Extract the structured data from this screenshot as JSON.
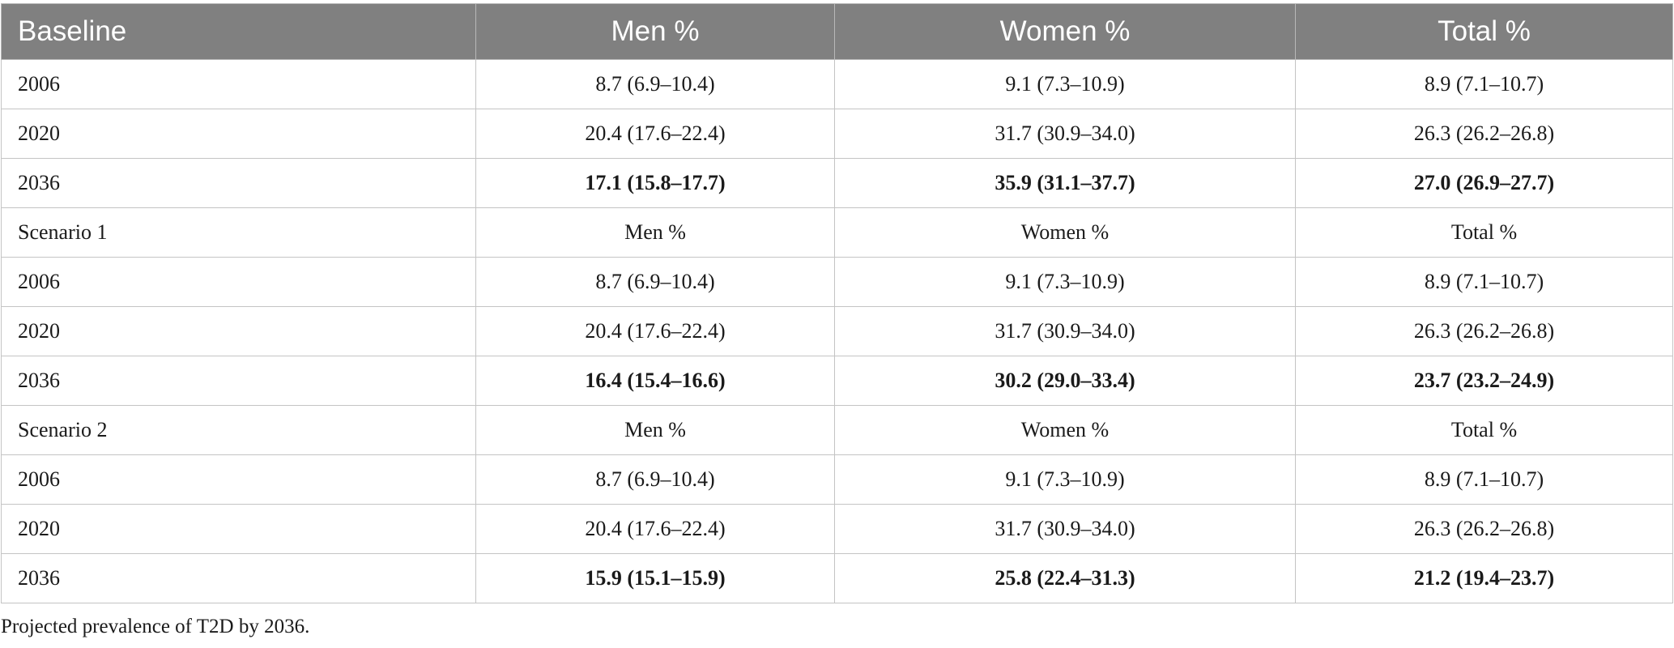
{
  "table": {
    "header": {
      "label": "Baseline",
      "columns": [
        "Men %",
        "Women %",
        "Total %"
      ]
    },
    "rows": [
      {
        "label": "2006",
        "cells": [
          "8.7 (6.9–10.4)",
          "9.1 (7.3–10.9)",
          "8.9 (7.1–10.7)"
        ],
        "bold": false
      },
      {
        "label": "2020",
        "cells": [
          "20.4 (17.6–22.4)",
          "31.7 (30.9–34.0)",
          "26.3 (26.2–26.8)"
        ],
        "bold": false
      },
      {
        "label": "2036",
        "cells": [
          "17.1 (15.8–17.7)",
          "35.9 (31.1–37.7)",
          "27.0 (26.9–27.7)"
        ],
        "bold": true
      },
      {
        "label": "Scenario 1",
        "cells": [
          "Men %",
          "Women %",
          "Total %"
        ],
        "bold": false
      },
      {
        "label": "2006",
        "cells": [
          "8.7 (6.9–10.4)",
          "9.1 (7.3–10.9)",
          "8.9 (7.1–10.7)"
        ],
        "bold": false
      },
      {
        "label": "2020",
        "cells": [
          "20.4 (17.6–22.4)",
          "31.7 (30.9–34.0)",
          "26.3 (26.2–26.8)"
        ],
        "bold": false
      },
      {
        "label": "2036",
        "cells": [
          "16.4 (15.4–16.6)",
          "30.2 (29.0–33.4)",
          "23.7 (23.2–24.9)"
        ],
        "bold": true
      },
      {
        "label": "Scenario 2",
        "cells": [
          "Men %",
          "Women %",
          "Total %"
        ],
        "bold": false
      },
      {
        "label": "2006",
        "cells": [
          "8.7 (6.9–10.4)",
          "9.1 (7.3–10.9)",
          "8.9 (7.1–10.7)"
        ],
        "bold": false
      },
      {
        "label": "2020",
        "cells": [
          "20.4 (17.6–22.4)",
          "31.7 (30.9–34.0)",
          "26.3 (26.2–26.8)"
        ],
        "bold": false
      },
      {
        "label": "2036",
        "cells": [
          "15.9 (15.1–15.9)",
          "25.8 (22.4–31.3)",
          "21.2 (19.4–23.7)"
        ],
        "bold": true
      }
    ],
    "caption": "Projected prevalence of T2D by 2036."
  },
  "colors": {
    "header_bg": "#808080",
    "header_text": "#ffffff",
    "border": "#c4c4c4"
  }
}
